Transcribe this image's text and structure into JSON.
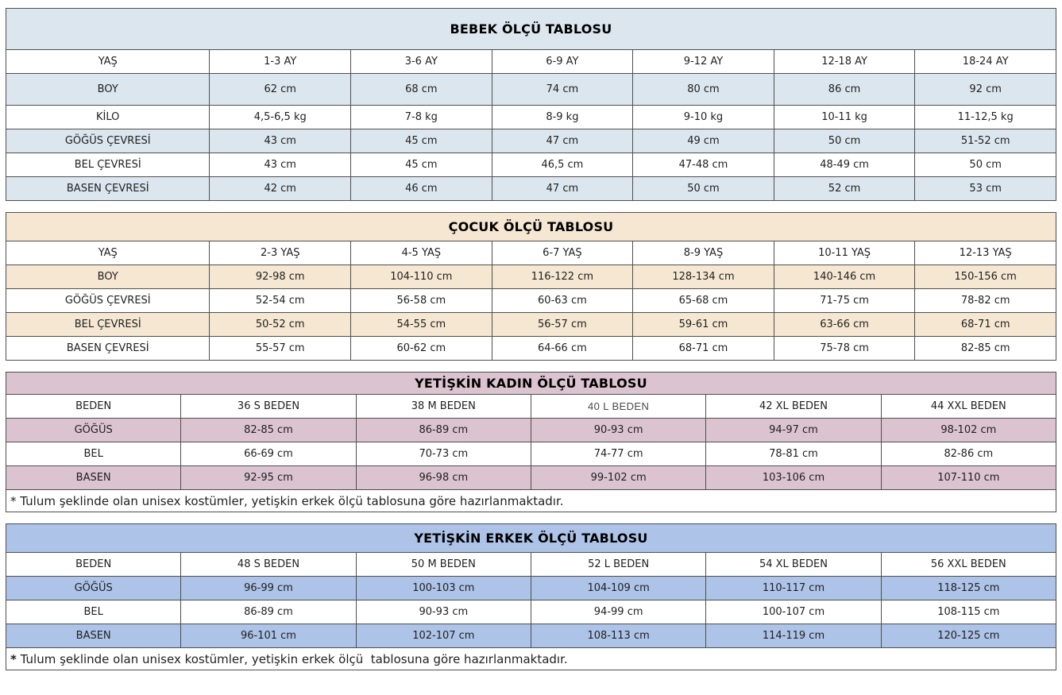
{
  "page": {
    "background": "#ffffff",
    "border_color": "#4f4f4f",
    "text_color": "#1f1f1f"
  },
  "tables": [
    {
      "id": "bebek",
      "title": "BEBEK ÖLÇÜ TABLOSU",
      "accent": "#dbe6ee",
      "rows": [
        [
          "YAŞ",
          "1-3 AY",
          "3-6 AY",
          "6-9 AY",
          "9-12 AY",
          "12-18 AY",
          "18-24 AY"
        ],
        [
          "BOY",
          "62 cm",
          "68 cm",
          "74 cm",
          "80 cm",
          "86 cm",
          "92 cm"
        ],
        [
          "KİLO",
          "4,5-6,5 kg",
          "7-8 kg",
          "8-9 kg",
          "9-10 kg",
          "10-11 kg",
          "11-12,5 kg"
        ],
        [
          "GÖĞÜS ÇEVRESİ",
          "43 cm",
          "45 cm",
          "47 cm",
          "49 cm",
          "50 cm",
          "51-52 cm"
        ],
        [
          "BEL ÇEVRESİ",
          "43 cm",
          "45 cm",
          "46,5 cm",
          "47-48 cm",
          "48-49 cm",
          "50 cm"
        ],
        [
          "BASEN ÇEVRESİ",
          "42 cm",
          "46 cm",
          "47 cm",
          "50 cm",
          "52 cm",
          "53 cm"
        ]
      ],
      "footnote": null
    },
    {
      "id": "cocuk",
      "title": "ÇOCUK ÖLÇÜ TABLOSU",
      "accent": "#f5e7d2",
      "rows": [
        [
          "YAŞ",
          "2-3 YAŞ",
          "4-5 YAŞ",
          "6-7 YAŞ",
          "8-9 YAŞ",
          "10-11 YAŞ",
          "12-13 YAŞ"
        ],
        [
          "BOY",
          "92-98 cm",
          "104-110 cm",
          "116-122 cm",
          "128-134 cm",
          "140-146 cm",
          "150-156 cm"
        ],
        [
          "GÖĞÜS ÇEVRESİ",
          "52-54 cm",
          "56-58 cm",
          "60-63 cm",
          "65-68 cm",
          "71-75 cm",
          "78-82 cm"
        ],
        [
          "BEL ÇEVRESİ",
          "50-52 cm",
          "54-55 cm",
          "56-57 cm",
          "59-61 cm",
          "63-66 cm",
          "68-71 cm"
        ],
        [
          "BASEN ÇEVRESİ",
          "55-57 cm",
          "60-62 cm",
          "64-66 cm",
          "68-71 cm",
          "75-78 cm",
          "82-85 cm"
        ]
      ],
      "footnote": null
    },
    {
      "id": "kadin",
      "title": "YETİŞKİN KADIN ÖLÇÜ TABLOSU",
      "accent": "#dcc3d0",
      "rows": [
        [
          "BEDEN",
          "36 S BEDEN",
          "38 M BEDEN",
          "40 L BEDEN",
          "42 XL BEDEN",
          "44 XXL BEDEN"
        ],
        [
          "GÖĞÜS",
          "82-85 cm",
          "86-89 cm",
          "90-93 cm",
          "94-97 cm",
          "98-102 cm"
        ],
        [
          "BEL",
          "66-69 cm",
          "70-73 cm",
          "74-77 cm",
          "78-81 cm",
          "82-86 cm"
        ],
        [
          "BASEN",
          "92-95 cm",
          "96-98 cm",
          "99-102 cm",
          "103-106 cm",
          "107-110 cm"
        ]
      ],
      "footnote": {
        "marker": "*",
        "text": "Tulum şeklinde olan unisex kostümler, yetişkin erkek ölçü tablosuna göre hazırlanmaktadır."
      }
    },
    {
      "id": "erkek",
      "title": "YETİŞKİN ERKEK ÖLÇÜ TABLOSU",
      "accent": "#adc3e7",
      "rows": [
        [
          "BEDEN",
          "48 S BEDEN",
          "50 M BEDEN",
          "52 L BEDEN",
          "54 XL BEDEN",
          "56 XXL BEDEN"
        ],
        [
          "GÖĞÜS",
          "96-99 cm",
          "100-103 cm",
          "104-109 cm",
          "110-117 cm",
          "118-125 cm"
        ],
        [
          "BEL",
          "86-89 cm",
          "90-93 cm",
          "94-99 cm",
          "100-107 cm",
          "108-115 cm"
        ],
        [
          "BASEN",
          "96-101 cm",
          "102-107 cm",
          "108-113 cm",
          "114-119 cm",
          "120-125 cm"
        ]
      ],
      "footnote": {
        "marker": "*",
        "text": "Tulum şeklinde olan unisex kostümler, yetişkin erkek ölçü  tablosuna göre hazırlanmaktadır."
      }
    }
  ]
}
